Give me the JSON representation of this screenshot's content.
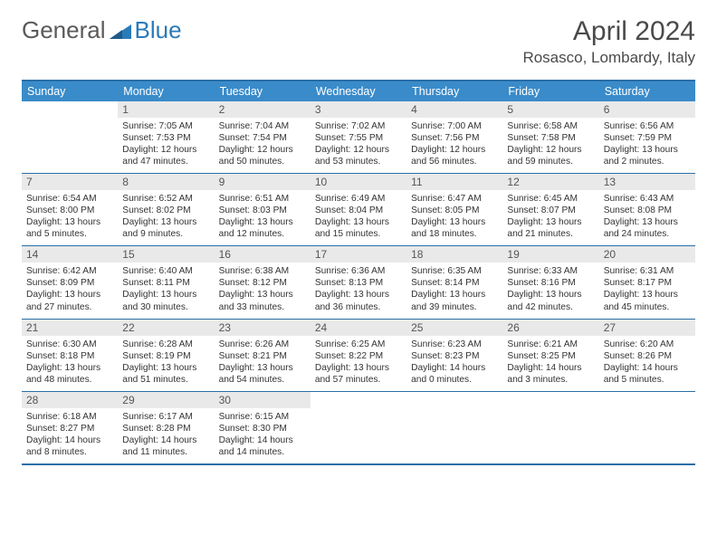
{
  "logo": {
    "part1": "General",
    "part2": "Blue"
  },
  "title": "April 2024",
  "location": "Rosasco, Lombardy, Italy",
  "weekdays": [
    "Sunday",
    "Monday",
    "Tuesday",
    "Wednesday",
    "Thursday",
    "Friday",
    "Saturday"
  ],
  "colors": {
    "header_bg": "#3a8bc9",
    "border": "#2a6fa8",
    "daynum_bg": "#e9e9e9",
    "accent": "#2a7ab8",
    "text": "#4a4a4a"
  },
  "rows": [
    [
      {
        "n": "",
        "l1": "",
        "l2": "",
        "l3": "",
        "l4": ""
      },
      {
        "n": "1",
        "l1": "Sunrise: 7:05 AM",
        "l2": "Sunset: 7:53 PM",
        "l3": "Daylight: 12 hours",
        "l4": "and 47 minutes."
      },
      {
        "n": "2",
        "l1": "Sunrise: 7:04 AM",
        "l2": "Sunset: 7:54 PM",
        "l3": "Daylight: 12 hours",
        "l4": "and 50 minutes."
      },
      {
        "n": "3",
        "l1": "Sunrise: 7:02 AM",
        "l2": "Sunset: 7:55 PM",
        "l3": "Daylight: 12 hours",
        "l4": "and 53 minutes."
      },
      {
        "n": "4",
        "l1": "Sunrise: 7:00 AM",
        "l2": "Sunset: 7:56 PM",
        "l3": "Daylight: 12 hours",
        "l4": "and 56 minutes."
      },
      {
        "n": "5",
        "l1": "Sunrise: 6:58 AM",
        "l2": "Sunset: 7:58 PM",
        "l3": "Daylight: 12 hours",
        "l4": "and 59 minutes."
      },
      {
        "n": "6",
        "l1": "Sunrise: 6:56 AM",
        "l2": "Sunset: 7:59 PM",
        "l3": "Daylight: 13 hours",
        "l4": "and 2 minutes."
      }
    ],
    [
      {
        "n": "7",
        "l1": "Sunrise: 6:54 AM",
        "l2": "Sunset: 8:00 PM",
        "l3": "Daylight: 13 hours",
        "l4": "and 5 minutes."
      },
      {
        "n": "8",
        "l1": "Sunrise: 6:52 AM",
        "l2": "Sunset: 8:02 PM",
        "l3": "Daylight: 13 hours",
        "l4": "and 9 minutes."
      },
      {
        "n": "9",
        "l1": "Sunrise: 6:51 AM",
        "l2": "Sunset: 8:03 PM",
        "l3": "Daylight: 13 hours",
        "l4": "and 12 minutes."
      },
      {
        "n": "10",
        "l1": "Sunrise: 6:49 AM",
        "l2": "Sunset: 8:04 PM",
        "l3": "Daylight: 13 hours",
        "l4": "and 15 minutes."
      },
      {
        "n": "11",
        "l1": "Sunrise: 6:47 AM",
        "l2": "Sunset: 8:05 PM",
        "l3": "Daylight: 13 hours",
        "l4": "and 18 minutes."
      },
      {
        "n": "12",
        "l1": "Sunrise: 6:45 AM",
        "l2": "Sunset: 8:07 PM",
        "l3": "Daylight: 13 hours",
        "l4": "and 21 minutes."
      },
      {
        "n": "13",
        "l1": "Sunrise: 6:43 AM",
        "l2": "Sunset: 8:08 PM",
        "l3": "Daylight: 13 hours",
        "l4": "and 24 minutes."
      }
    ],
    [
      {
        "n": "14",
        "l1": "Sunrise: 6:42 AM",
        "l2": "Sunset: 8:09 PM",
        "l3": "Daylight: 13 hours",
        "l4": "and 27 minutes."
      },
      {
        "n": "15",
        "l1": "Sunrise: 6:40 AM",
        "l2": "Sunset: 8:11 PM",
        "l3": "Daylight: 13 hours",
        "l4": "and 30 minutes."
      },
      {
        "n": "16",
        "l1": "Sunrise: 6:38 AM",
        "l2": "Sunset: 8:12 PM",
        "l3": "Daylight: 13 hours",
        "l4": "and 33 minutes."
      },
      {
        "n": "17",
        "l1": "Sunrise: 6:36 AM",
        "l2": "Sunset: 8:13 PM",
        "l3": "Daylight: 13 hours",
        "l4": "and 36 minutes."
      },
      {
        "n": "18",
        "l1": "Sunrise: 6:35 AM",
        "l2": "Sunset: 8:14 PM",
        "l3": "Daylight: 13 hours",
        "l4": "and 39 minutes."
      },
      {
        "n": "19",
        "l1": "Sunrise: 6:33 AM",
        "l2": "Sunset: 8:16 PM",
        "l3": "Daylight: 13 hours",
        "l4": "and 42 minutes."
      },
      {
        "n": "20",
        "l1": "Sunrise: 6:31 AM",
        "l2": "Sunset: 8:17 PM",
        "l3": "Daylight: 13 hours",
        "l4": "and 45 minutes."
      }
    ],
    [
      {
        "n": "21",
        "l1": "Sunrise: 6:30 AM",
        "l2": "Sunset: 8:18 PM",
        "l3": "Daylight: 13 hours",
        "l4": "and 48 minutes."
      },
      {
        "n": "22",
        "l1": "Sunrise: 6:28 AM",
        "l2": "Sunset: 8:19 PM",
        "l3": "Daylight: 13 hours",
        "l4": "and 51 minutes."
      },
      {
        "n": "23",
        "l1": "Sunrise: 6:26 AM",
        "l2": "Sunset: 8:21 PM",
        "l3": "Daylight: 13 hours",
        "l4": "and 54 minutes."
      },
      {
        "n": "24",
        "l1": "Sunrise: 6:25 AM",
        "l2": "Sunset: 8:22 PM",
        "l3": "Daylight: 13 hours",
        "l4": "and 57 minutes."
      },
      {
        "n": "25",
        "l1": "Sunrise: 6:23 AM",
        "l2": "Sunset: 8:23 PM",
        "l3": "Daylight: 14 hours",
        "l4": "and 0 minutes."
      },
      {
        "n": "26",
        "l1": "Sunrise: 6:21 AM",
        "l2": "Sunset: 8:25 PM",
        "l3": "Daylight: 14 hours",
        "l4": "and 3 minutes."
      },
      {
        "n": "27",
        "l1": "Sunrise: 6:20 AM",
        "l2": "Sunset: 8:26 PM",
        "l3": "Daylight: 14 hours",
        "l4": "and 5 minutes."
      }
    ],
    [
      {
        "n": "28",
        "l1": "Sunrise: 6:18 AM",
        "l2": "Sunset: 8:27 PM",
        "l3": "Daylight: 14 hours",
        "l4": "and 8 minutes."
      },
      {
        "n": "29",
        "l1": "Sunrise: 6:17 AM",
        "l2": "Sunset: 8:28 PM",
        "l3": "Daylight: 14 hours",
        "l4": "and 11 minutes."
      },
      {
        "n": "30",
        "l1": "Sunrise: 6:15 AM",
        "l2": "Sunset: 8:30 PM",
        "l3": "Daylight: 14 hours",
        "l4": "and 14 minutes."
      },
      {
        "n": "",
        "l1": "",
        "l2": "",
        "l3": "",
        "l4": ""
      },
      {
        "n": "",
        "l1": "",
        "l2": "",
        "l3": "",
        "l4": ""
      },
      {
        "n": "",
        "l1": "",
        "l2": "",
        "l3": "",
        "l4": ""
      },
      {
        "n": "",
        "l1": "",
        "l2": "",
        "l3": "",
        "l4": ""
      }
    ]
  ]
}
